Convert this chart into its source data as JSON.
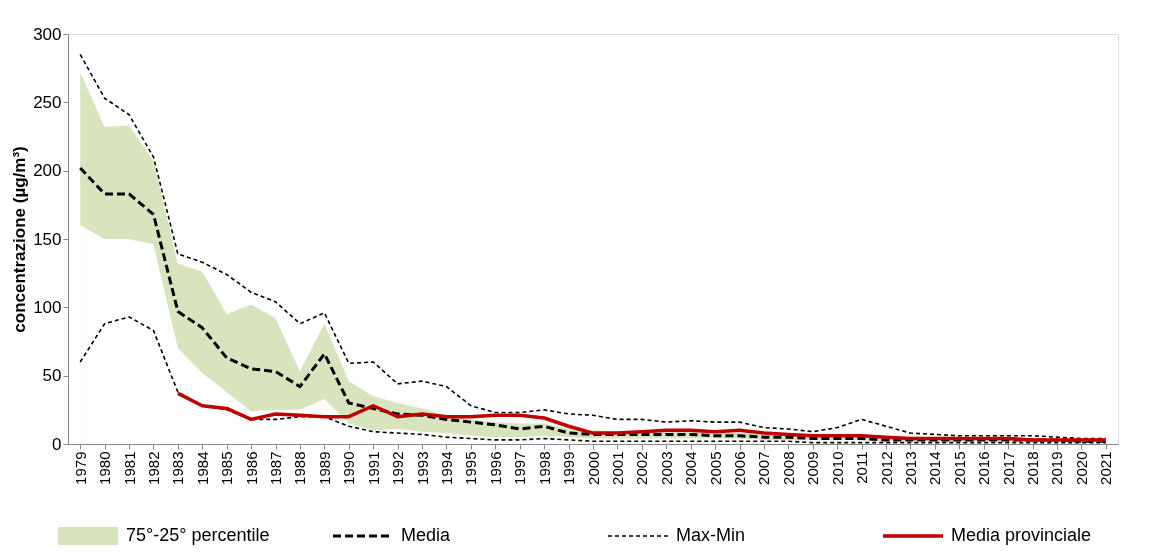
{
  "chart_data": {
    "type": "line",
    "ylabel": "concentrazione (µg/m³)",
    "ylim": [
      0,
      300
    ],
    "yticks": [
      0,
      50,
      100,
      150,
      200,
      250,
      300
    ],
    "grid": false,
    "legend": "bottom",
    "categories": [
      "1979",
      "1980",
      "1981",
      "1982",
      "1983",
      "1984",
      "1985",
      "1986",
      "1987",
      "1988",
      "1989",
      "1990",
      "1991",
      "1992",
      "1993",
      "1994",
      "1995",
      "1996",
      "1997",
      "1998",
      "1999",
      "2000",
      "2001",
      "2002",
      "2003",
      "2004",
      "2005",
      "2006",
      "2007",
      "2008",
      "2009",
      "2010",
      "2011",
      "2012",
      "2013",
      "2014",
      "2015",
      "2016",
      "2017",
      "2018",
      "2019",
      "2020",
      "2021"
    ],
    "series": [
      {
        "name": "75°-25° percentile",
        "type": "area",
        "color": "#d7e4bd",
        "values": [
          272,
          232,
          233,
          207,
          132,
          126,
          95,
          102,
          92,
          53,
          88,
          46,
          35,
          30,
          26,
          21,
          18,
          16,
          15,
          15,
          11,
          10,
          9,
          10,
          9,
          9,
          9,
          8,
          7,
          7,
          6,
          6,
          6,
          5,
          5,
          4,
          4,
          4,
          4,
          4,
          3,
          3,
          3
        ]
      },
      {
        "type": "area",
        "color": "#ffffff",
        "values": [
          160,
          150,
          150,
          146,
          70,
          52,
          38,
          24,
          25,
          25,
          33,
          15,
          10,
          11,
          9,
          8,
          6,
          5,
          5,
          6,
          5,
          4,
          4,
          4,
          4,
          4,
          4,
          4,
          3,
          3,
          3,
          3,
          3,
          2,
          2,
          2,
          2,
          2,
          2,
          2,
          2,
          2,
          2
        ]
      },
      {
        "name": "Media",
        "color": "#000000",
        "line_style": "dashed",
        "values": [
          202,
          183,
          183,
          168,
          97,
          85,
          63,
          55,
          53,
          42,
          66,
          30,
          26,
          22,
          21,
          18,
          16,
          14,
          11,
          13,
          8,
          7,
          7,
          7,
          7,
          7,
          6,
          6,
          5,
          5,
          4,
          4,
          4,
          3,
          3,
          3,
          3,
          3,
          3,
          3,
          3,
          2,
          2
        ]
      },
      {
        "name": "Max-Min",
        "color": "#000000",
        "line_style": "dotted",
        "values": [
          285,
          253,
          241,
          210,
          139,
          133,
          124,
          111,
          104,
          88,
          96,
          59,
          60,
          44,
          46,
          42,
          28,
          23,
          23,
          25,
          22,
          21,
          18,
          18,
          16,
          17,
          16,
          16,
          12,
          11,
          9,
          12,
          18,
          13,
          8,
          7,
          6,
          6,
          6,
          6,
          5,
          4,
          4
        ]
      },
      {
        "color": "#000000",
        "line_style": "dotted",
        "values": [
          60,
          88,
          93,
          83,
          38,
          28,
          25,
          18,
          18,
          20,
          20,
          13,
          9,
          8,
          7,
          5,
          4,
          3,
          3,
          4,
          3,
          2,
          2,
          2,
          2,
          2,
          2,
          2,
          2,
          2,
          1,
          1,
          1,
          1,
          1,
          1,
          1,
          1,
          1,
          1,
          1,
          1,
          1
        ]
      },
      {
        "name": "Media provinciale",
        "color": "#c00000",
        "line_style": "solid",
        "values": [
          null,
          null,
          null,
          null,
          37,
          28,
          26,
          18,
          22,
          21,
          20,
          20,
          28,
          20,
          22,
          20,
          20,
          21,
          21,
          19,
          13,
          8,
          8,
          9,
          10,
          10,
          9,
          10,
          8,
          7,
          6,
          6,
          6,
          5,
          4,
          4,
          4,
          4,
          4,
          3,
          3,
          3,
          3
        ]
      }
    ]
  }
}
